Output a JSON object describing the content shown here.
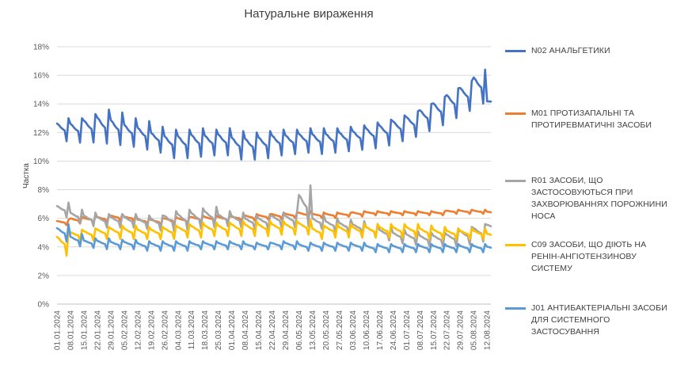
{
  "chart_data": {
    "type": "line",
    "title": "Натуральне вираження",
    "xlabel": "",
    "ylabel": "Частка",
    "ylim": [
      0,
      18
    ],
    "yticks": [
      "0%",
      "2%",
      "4%",
      "6%",
      "8%",
      "10%",
      "12%",
      "14%",
      "16%",
      "18%"
    ],
    "ytick_values": [
      0,
      2,
      4,
      6,
      8,
      10,
      12,
      14,
      16,
      18
    ],
    "grid": true,
    "legend_position": "right",
    "x_ticks": [
      "01.01.2024",
      "08.01.2024",
      "15.01.2024",
      "22.01.2024",
      "29.01.2024",
      "05.02.2024",
      "12.02.2024",
      "19.02.2024",
      "26.02.2024",
      "04.03.2024",
      "11.03.2024",
      "18.03.2024",
      "25.03.2024",
      "01.04.2024",
      "08.04.2024",
      "15.04.2024",
      "22.04.2024",
      "29.04.2024",
      "06.05.2024",
      "13.05.2024",
      "20.05.2024",
      "27.05.2024",
      "03.06.2024",
      "10.06.2024",
      "17.06.2024",
      "24.06.2024",
      "01.07.2024",
      "08.07.2024",
      "15.07.2024",
      "22.07.2024",
      "29.07.2024",
      "05.08.2024",
      "12.08.2024"
    ],
    "x_range_days": [
      0,
      226
    ],
    "series": [
      {
        "name": "N02 АНАЛЬГЕТИКИ",
        "color": "#4472C4",
        "weekly_base": [
          11.3,
          11.2,
          11.2,
          11.1,
          11.0,
          10.9,
          10.7,
          10.5,
          10.1,
          10.1,
          10.2,
          10.3,
          10.3,
          10.0,
          10.0,
          10.1,
          10.3,
          10.4,
          10.5,
          10.4,
          10.5,
          10.6,
          10.7,
          10.8,
          11.0,
          11.3,
          11.6,
          12.0,
          12.4,
          12.9,
          13.4,
          13.9,
          14.1
        ],
        "weekly_peak": [
          13.0,
          13.0,
          13.3,
          13.6,
          13.4,
          13.0,
          12.8,
          12.4,
          12.2,
          12.2,
          12.3,
          12.2,
          12.3,
          12.1,
          12.0,
          12.1,
          12.2,
          12.2,
          12.3,
          12.3,
          12.3,
          12.4,
          12.5,
          12.7,
          12.9,
          13.2,
          13.5,
          14.0,
          14.5,
          15.1,
          15.6,
          16.4,
          14.2
        ]
      },
      {
        "name": "M01 ПРОТИЗАПАЛЬНІ ТА ПРОТИРЕВМАТИЧНІ ЗАСОБИ",
        "color": "#ED7D31",
        "weekly_base": [
          5.5,
          5.6,
          5.7,
          5.7,
          5.8,
          5.8,
          5.6,
          5.5,
          5.6,
          5.6,
          5.7,
          5.7,
          5.7,
          5.8,
          5.8,
          5.9,
          5.9,
          6.0,
          6.0,
          6.0,
          6.0,
          6.1,
          6.1,
          6.2,
          6.2,
          6.2,
          6.2,
          6.2,
          6.2,
          6.3,
          6.3,
          6.3,
          6.3
        ],
        "weekly_peak": [
          5.9,
          6.1,
          6.1,
          6.2,
          6.3,
          6.2,
          6.0,
          6.0,
          6.1,
          6.1,
          6.2,
          6.2,
          6.2,
          6.2,
          6.3,
          6.3,
          6.4,
          6.4,
          6.5,
          6.4,
          6.4,
          6.4,
          6.5,
          6.5,
          6.5,
          6.5,
          6.5,
          6.5,
          6.5,
          6.6,
          6.6,
          6.6,
          6.5
        ]
      },
      {
        "name": "R01 ЗАСОБИ, ЩО ЗАСТОСОВУЮТЬСЯ ПРИ ЗАХВОРЮВАННЯХ ПОРОЖНИНИ НОСА",
        "color": "#A5A5A5",
        "weekly_base": [
          6.0,
          5.6,
          5.4,
          5.3,
          5.3,
          5.3,
          5.2,
          5.1,
          5.0,
          5.1,
          5.2,
          5.3,
          5.4,
          5.3,
          5.2,
          5.2,
          5.3,
          5.3,
          5.3,
          5.2,
          5.0,
          4.9,
          4.8,
          4.6,
          4.4,
          4.2,
          4.1,
          4.0,
          4.0,
          4.0,
          4.1,
          4.3,
          5.0
        ],
        "weekly_peak": [
          7.1,
          6.6,
          6.4,
          6.3,
          6.3,
          6.3,
          6.2,
          6.2,
          6.5,
          6.6,
          6.7,
          6.8,
          6.5,
          6.4,
          6.2,
          6.2,
          6.4,
          6.4,
          8.3,
          6.2,
          6.0,
          5.9,
          5.8,
          5.6,
          5.4,
          5.2,
          5.1,
          5.0,
          5.0,
          5.1,
          5.4,
          5.6,
          5.7
        ]
      },
      {
        "name": "C09 ЗАСОБИ, ЩО ДІЮТЬ НА РЕНІН-АНГІОТЕНЗИНОВУ СИСТЕМУ",
        "color": "#FFC000",
        "weekly_base": [
          3.3,
          4.4,
          4.4,
          4.5,
          4.5,
          4.5,
          4.5,
          4.5,
          4.5,
          4.6,
          4.6,
          4.7,
          4.7,
          4.7,
          4.7,
          4.7,
          4.8,
          4.8,
          4.8,
          4.5,
          4.6,
          4.6,
          4.6,
          4.6,
          4.6,
          4.6,
          4.6,
          4.5,
          4.5,
          4.5,
          4.5,
          4.5,
          4.6
        ],
        "weekly_peak": [
          5.1,
          5.2,
          5.3,
          5.4,
          5.5,
          5.5,
          5.4,
          5.4,
          5.5,
          5.6,
          5.7,
          5.7,
          5.7,
          5.8,
          5.8,
          5.8,
          5.8,
          5.8,
          5.9,
          5.5,
          5.6,
          5.6,
          5.6,
          5.6,
          5.6,
          5.6,
          5.6,
          5.5,
          5.4,
          5.3,
          5.3,
          5.3,
          5.0
        ]
      },
      {
        "name": "J01 АНТИБАКТЕРІАЛЬНІ ЗАСОБИ ДЛЯ СИСТЕМНОГО ЗАСТОСУВАННЯ",
        "color": "#5B9BD5",
        "weekly_base": [
          4.3,
          4.0,
          3.9,
          3.8,
          3.8,
          3.8,
          3.7,
          3.7,
          3.7,
          3.7,
          3.8,
          3.8,
          3.8,
          3.8,
          3.8,
          3.8,
          3.8,
          3.8,
          3.7,
          3.7,
          3.7,
          3.7,
          3.7,
          3.6,
          3.6,
          3.6,
          3.6,
          3.6,
          3.6,
          3.6,
          3.6,
          3.6,
          3.7
        ],
        "weekly_peak": [
          5.6,
          4.9,
          4.6,
          4.6,
          4.5,
          4.5,
          4.4,
          4.4,
          4.4,
          4.4,
          4.4,
          4.4,
          4.4,
          4.4,
          4.3,
          4.3,
          4.4,
          4.4,
          4.3,
          4.3,
          4.3,
          4.3,
          4.3,
          4.2,
          4.2,
          4.2,
          4.2,
          4.2,
          4.2,
          4.2,
          4.2,
          4.2,
          4.1
        ]
      }
    ]
  }
}
